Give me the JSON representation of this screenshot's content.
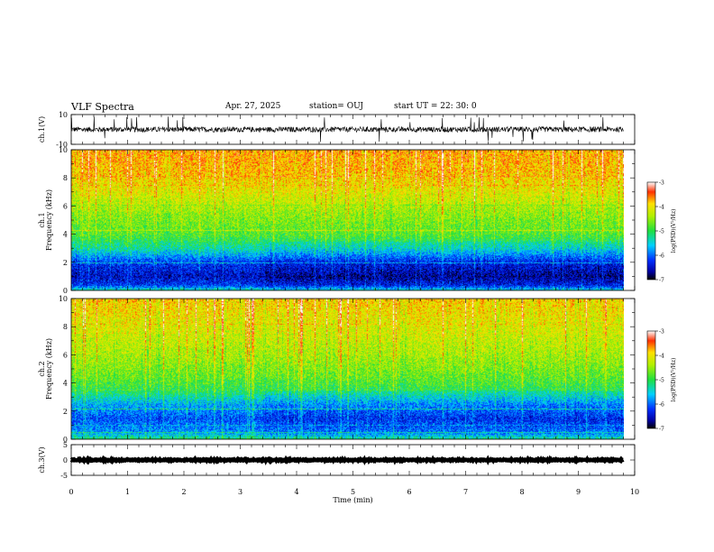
{
  "header": {
    "title": "VLF Spectra",
    "date": "Apr. 27, 2025",
    "station": "station= OUJ",
    "start": "start  UT  =   22: 30: 0"
  },
  "chart_data": {
    "type": "heatmap",
    "title": "VLF Spectra",
    "xlabel": "Time  (min)",
    "xlim": [
      0,
      10
    ],
    "xticks": [
      "0",
      "1",
      "2",
      "3",
      "4",
      "5",
      "6",
      "7",
      "8",
      "9",
      "10"
    ],
    "data_end_min": 9.8,
    "panels": [
      {
        "name": "ch1-waveform",
        "type": "line",
        "ylabel": "ch.1(V)",
        "ylim": [
          -10,
          10
        ],
        "yticks": [
          "10",
          "-10"
        ],
        "baseline": 0,
        "amplitude": 4
      },
      {
        "name": "ch1-spectrogram",
        "type": "heatmap",
        "ylabel_top": "ch.1",
        "ylabel": "Frequency  (kHz)",
        "ylim": [
          0,
          10
        ],
        "yticks": [
          "0",
          "2",
          "4",
          "6",
          "8",
          "10"
        ],
        "colorbar": {
          "label": "log(PSD)(V²/Hz)",
          "range": [
            -7,
            -3
          ],
          "ticks": [
            "-3",
            "-4",
            "-5",
            "-6",
            "-7"
          ]
        },
        "profile": [
          {
            "f": 0,
            "v": -5.2
          },
          {
            "f": 0.4,
            "v": -6.2
          },
          {
            "f": 1.0,
            "v": -6.5
          },
          {
            "f": 2.0,
            "v": -6.2
          },
          {
            "f": 3.0,
            "v": -5.3
          },
          {
            "f": 4.0,
            "v": -4.8
          },
          {
            "f": 5.5,
            "v": -4.5
          },
          {
            "f": 7.0,
            "v": -4.1
          },
          {
            "f": 8.5,
            "v": -3.8
          },
          {
            "f": 10.0,
            "v": -3.7
          }
        ]
      },
      {
        "name": "ch2-spectrogram",
        "type": "heatmap",
        "ylabel_top": "ch.2",
        "ylabel": "Frequency  (kHz)",
        "ylim": [
          0,
          10
        ],
        "yticks": [
          "0",
          "2",
          "4",
          "6",
          "8",
          "10"
        ],
        "colorbar": {
          "label": "log(PSD)(V²/Hz)",
          "range": [
            -7,
            -3
          ],
          "ticks": [
            "-3",
            "-4",
            "-5",
            "-6",
            "-7"
          ]
        },
        "profile": [
          {
            "f": 0,
            "v": -5.0
          },
          {
            "f": 0.5,
            "v": -5.8
          },
          {
            "f": 1.5,
            "v": -6.1
          },
          {
            "f": 2.5,
            "v": -5.7
          },
          {
            "f": 3.5,
            "v": -5.0
          },
          {
            "f": 4.5,
            "v": -4.7
          },
          {
            "f": 6.0,
            "v": -4.4
          },
          {
            "f": 7.5,
            "v": -4.2
          },
          {
            "f": 9.0,
            "v": -4.0
          },
          {
            "f": 10.0,
            "v": -3.9
          }
        ]
      },
      {
        "name": "ch3-waveform",
        "type": "line",
        "ylabel": "ch.3(V)",
        "ylim": [
          -5,
          5
        ],
        "yticks": [
          "5",
          "0",
          "-5"
        ],
        "baseline": 0,
        "amplitude": 0.3
      }
    ]
  }
}
